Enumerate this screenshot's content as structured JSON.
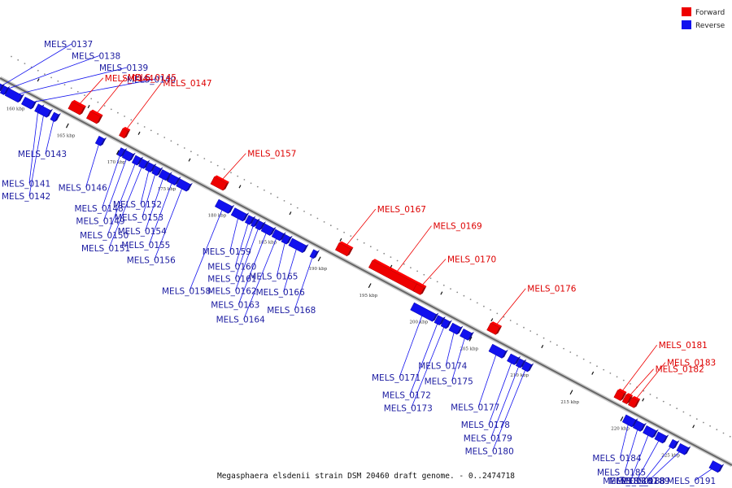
{
  "caption": "Megasphaera elsdenii strain DSM 20460 draft genome. - 0..2474718",
  "legend": {
    "forward_label": "Forward",
    "reverse_label": "Reverse",
    "forward_color": "#ee0000",
    "reverse_color": "#1111ee"
  },
  "axis": {
    "unit": "kbp",
    "tick_labels": [
      "160 kbp",
      "165 kbp",
      "170 kbp",
      "175 kbp",
      "180 kbp",
      "185 kbp",
      "190 kbp",
      "195 kbp",
      "200 kbp",
      "205 kbp",
      "210 kbp",
      "215 kbp",
      "220 kbp",
      "225 kbp"
    ]
  },
  "genes": [
    {
      "name": "MELS_0137",
      "strand": "reverse",
      "t": 0.004,
      "len": 0.005
    },
    {
      "name": "MELS_0138",
      "strand": "reverse",
      "t": 0.011,
      "len": 0.005
    },
    {
      "name": "MELS_0139",
      "strand": "reverse",
      "t": 0.024,
      "len": 0.018
    },
    {
      "name": "MELS_0140",
      "strand": "reverse",
      "t": 0.044,
      "len": 0.013
    },
    {
      "name": "MELS_0141",
      "strand": "reverse",
      "t": 0.058,
      "len": 0.005
    },
    {
      "name": "MELS_0142",
      "strand": "reverse",
      "t": 0.066,
      "len": 0.012
    },
    {
      "name": "MELS_0143",
      "strand": "reverse",
      "t": 0.08,
      "len": 0.006
    },
    {
      "name": "MELS_0144",
      "strand": "forward",
      "t": 0.098,
      "len": 0.016
    },
    {
      "name": "MELS_0145",
      "strand": "forward",
      "t": 0.122,
      "len": 0.014
    },
    {
      "name": "MELS_0146",
      "strand": "reverse",
      "t": 0.142,
      "len": 0.007
    },
    {
      "name": "MELS_0147",
      "strand": "forward",
      "t": 0.163,
      "len": 0.007
    },
    {
      "name": "MELS_0148",
      "strand": "reverse",
      "t": 0.171,
      "len": 0.005
    },
    {
      "name": "MELS_0149",
      "strand": "reverse",
      "t": 0.18,
      "len": 0.01
    },
    {
      "name": "MELS_0150",
      "strand": "reverse",
      "t": 0.192,
      "len": 0.007
    },
    {
      "name": "MELS_0151",
      "strand": "reverse",
      "t": 0.201,
      "len": 0.007
    },
    {
      "name": "MELS_0152",
      "strand": "reverse",
      "t": 0.21,
      "len": 0.007
    },
    {
      "name": "MELS_0153",
      "strand": "reverse",
      "t": 0.219,
      "len": 0.007
    },
    {
      "name": "MELS_0154",
      "strand": "reverse",
      "t": 0.23,
      "len": 0.01
    },
    {
      "name": "MELS_0155",
      "strand": "reverse",
      "t": 0.242,
      "len": 0.01
    },
    {
      "name": "MELS_0156",
      "strand": "reverse",
      "t": 0.256,
      "len": 0.014
    },
    {
      "name": "MELS_0157",
      "strand": "forward",
      "t": 0.293,
      "len": 0.017
    },
    {
      "name": "MELS_0158",
      "strand": "reverse",
      "t": 0.311,
      "len": 0.018
    },
    {
      "name": "MELS_0159",
      "strand": "reverse",
      "t": 0.332,
      "len": 0.016
    },
    {
      "name": "MELS_0160",
      "strand": "reverse",
      "t": 0.346,
      "len": 0.006
    },
    {
      "name": "MELS_0161",
      "strand": "reverse",
      "t": 0.353,
      "len": 0.004
    },
    {
      "name": "MELS_0162",
      "strand": "reverse",
      "t": 0.36,
      "len": 0.006
    },
    {
      "name": "MELS_0163",
      "strand": "reverse",
      "t": 0.371,
      "len": 0.012
    },
    {
      "name": "MELS_0164",
      "strand": "reverse",
      "t": 0.385,
      "len": 0.011
    },
    {
      "name": "MELS_0165",
      "strand": "reverse",
      "t": 0.396,
      "len": 0.007
    },
    {
      "name": "MELS_0166",
      "strand": "reverse",
      "t": 0.412,
      "len": 0.019
    },
    {
      "name": "MELS_0167",
      "strand": "forward",
      "t": 0.463,
      "len": 0.016
    },
    {
      "name": "MELS_0168",
      "strand": "reverse",
      "t": 0.434,
      "len": 0.005
    },
    {
      "name": "MELS_0169",
      "strand": "forward",
      "t": 0.532,
      "len": 0.063
    },
    {
      "name": "MELS_0170",
      "strand": "forward",
      "t": 0.566,
      "len": 0.01
    },
    {
      "name": "MELS_0171",
      "strand": "reverse",
      "t": 0.584,
      "len": 0.03
    },
    {
      "name": "MELS_0172",
      "strand": "reverse",
      "t": 0.605,
      "len": 0.007
    },
    {
      "name": "MELS_0173",
      "strand": "reverse",
      "t": 0.614,
      "len": 0.007
    },
    {
      "name": "MELS_0174",
      "strand": "reverse",
      "t": 0.627,
      "len": 0.011
    },
    {
      "name": "MELS_0175",
      "strand": "reverse",
      "t": 0.642,
      "len": 0.011
    },
    {
      "name": "MELS_0176",
      "strand": "forward",
      "t": 0.668,
      "len": 0.012
    },
    {
      "name": "MELS_0177",
      "strand": "reverse",
      "t": 0.685,
      "len": 0.018
    },
    {
      "name": "MELS_0178",
      "strand": "reverse",
      "t": 0.706,
      "len": 0.01
    },
    {
      "name": "MELS_0179",
      "strand": "reverse",
      "t": 0.716,
      "len": 0.006
    },
    {
      "name": "MELS_0180",
      "strand": "reverse",
      "t": 0.725,
      "len": 0.008
    },
    {
      "name": "MELS_0181",
      "strand": "forward",
      "t": 0.84,
      "len": 0.009
    },
    {
      "name": "MELS_0182",
      "strand": "forward",
      "t": 0.85,
      "len": 0.006
    },
    {
      "name": "MELS_0183",
      "strand": "forward",
      "t": 0.859,
      "len": 0.008
    },
    {
      "name": "MELS_0184",
      "strand": "reverse",
      "t": 0.865,
      "len": 0.013
    },
    {
      "name": "MELS_0185",
      "strand": "reverse",
      "t": 0.878,
      "len": 0.01
    },
    {
      "name": "MELS_0186",
      "strand": "reverse",
      "t": 0.893,
      "len": 0.013
    },
    {
      "name": "MELS_0187",
      "strand": "reverse",
      "t": 0.908,
      "len": 0.011
    },
    {
      "name": "MELS_0188",
      "strand": "reverse",
      "t": 0.925,
      "len": 0.006
    },
    {
      "name": "MELS_0189",
      "strand": "reverse",
      "t": 0.938,
      "len": 0.011
    },
    {
      "name": "MELS_0191",
      "strand": "reverse",
      "t": 0.983,
      "len": 0.012
    }
  ]
}
